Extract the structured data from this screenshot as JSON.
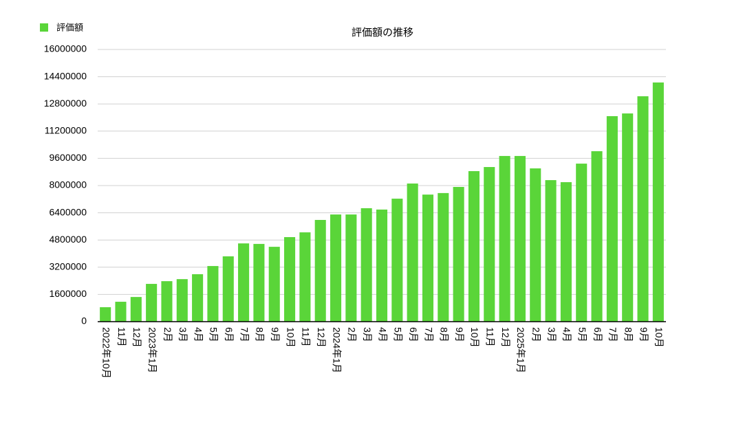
{
  "chart_data": {
    "type": "bar",
    "title": "評価額の推移",
    "legend": "top-left",
    "series": [
      {
        "name": "評価額",
        "color": "#5ad539",
        "values": [
          850000,
          1170000,
          1450000,
          2220000,
          2380000,
          2500000,
          2790000,
          3270000,
          3840000,
          4600000,
          4570000,
          4400000,
          4970000,
          5250000,
          5980000,
          6300000,
          6300000,
          6670000,
          6590000,
          7230000,
          8120000,
          7470000,
          7560000,
          7920000,
          8850000,
          9090000,
          9740000,
          9740000,
          9010000,
          8320000,
          8200000,
          9290000,
          10020000,
          12080000,
          12240000,
          13250000,
          14060000
        ]
      }
    ],
    "categories": [
      "2022年10月",
      "11月",
      "12月",
      "2023年1月",
      "2月",
      "3月",
      "4月",
      "5月",
      "6月",
      "7月",
      "8月",
      "9月",
      "10月",
      "11月",
      "12月",
      "2024年1月",
      "2月",
      "3月",
      "4月",
      "5月",
      "6月",
      "7月",
      "8月",
      "9月",
      "10月",
      "11月",
      "12月",
      "2025年1月",
      "2月",
      "3月",
      "4月",
      "5月",
      "6月",
      "7月",
      "8月",
      "9月",
      "10月"
    ],
    "ylim": [
      0,
      16000000
    ],
    "yticks": [
      0,
      1600000,
      3200000,
      4800000,
      6400000,
      8000000,
      9600000,
      11200000,
      12800000,
      14400000,
      16000000
    ],
    "grid": true
  }
}
